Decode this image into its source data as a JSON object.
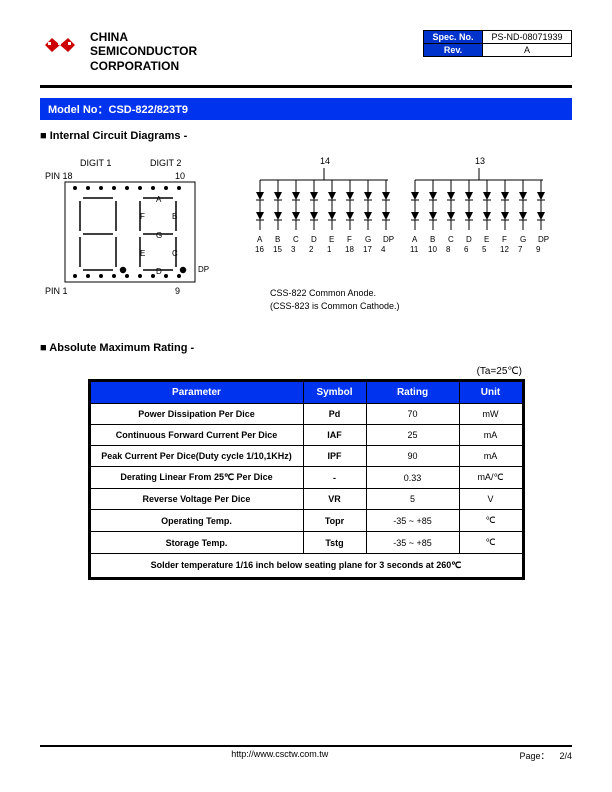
{
  "company": {
    "line1": "CHINA",
    "line2": "SEMICONDUCTOR",
    "line3": "CORPORATION"
  },
  "spec": {
    "spec_no_label": "Spec. No.",
    "spec_no": "PS-ND-08071939",
    "rev_label": "Rev.",
    "rev": "A"
  },
  "model_bar": "Model No：CSD-822/823T9",
  "section1": "Internal Circuit Diagrams -",
  "section2": "Absolute Maximum Rating -",
  "pkg_labels": {
    "digit1": "DIGIT 1",
    "digit2": "DIGIT 2",
    "pin18": "PIN 18",
    "pin10": "10",
    "pin1": "PIN 1",
    "pin9": "9",
    "dp": "DP"
  },
  "seg_labels": {
    "a": "A",
    "b": "B",
    "c": "C",
    "d": "D",
    "e": "E",
    "f": "F",
    "g": "G"
  },
  "circuit": {
    "top1": "14",
    "top2": "13",
    "row1": [
      "A",
      "B",
      "C",
      "D",
      "E",
      "F",
      "G",
      "DP",
      "A",
      "B",
      "C",
      "D",
      "E",
      "F",
      "G",
      "DP"
    ],
    "row2": [
      "16",
      "15",
      "3",
      "2",
      "1",
      "18",
      "17",
      "4",
      "11",
      "10",
      "8",
      "6",
      "5",
      "12",
      "7",
      "9"
    ],
    "note1": "CSS-822 Common Anode.",
    "note2": "(CSS-823 is Common Cathode.)"
  },
  "ta_note": "(Ta=25℃)",
  "ratings": {
    "headers": {
      "param": "Parameter",
      "symbol": "Symbol",
      "rating": "Rating",
      "unit": "Unit"
    },
    "rows": [
      {
        "param": "Power Dissipation Per Dice",
        "sym": "Pd",
        "rating": "70",
        "unit": "mW"
      },
      {
        "param": "Continuous Forward Current Per Dice",
        "sym": "IAF",
        "rating": "25",
        "unit": "mA"
      },
      {
        "param": "Peak Current Per Dice(Duty cycle 1/10,1KHz)",
        "sym": "IPF",
        "rating": "90",
        "unit": "mA"
      },
      {
        "param": "Derating Linear From 25℃ Per Dice",
        "sym": "-",
        "rating": "0.33",
        "unit": "mA/℃"
      },
      {
        "param": "Reverse Voltage Per Dice",
        "sym": "VR",
        "rating": "5",
        "unit": "V"
      },
      {
        "param": "Operating Temp.",
        "sym": "Topr",
        "rating": "-35 ~ +85",
        "unit": "℃"
      },
      {
        "param": "Storage Temp.",
        "sym": "Tstg",
        "rating": "-35 ~ +85",
        "unit": "℃"
      }
    ],
    "solder": "Solder temperature 1/16 inch below seating plane for 3 seconds at 260℃"
  },
  "footer": {
    "url": "http://www.csctw.com.tw",
    "page_label": "Page：",
    "page": "2/4"
  },
  "colors": {
    "blue": "#0033ee",
    "red": "#cc0000"
  }
}
